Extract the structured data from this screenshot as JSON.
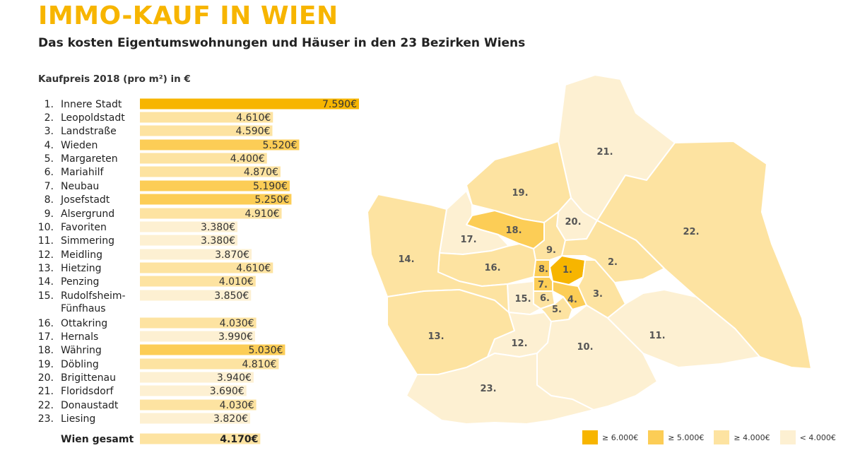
{
  "title": "IMMO-KAUF IN WIEN",
  "subtitle": "Das kosten Eigentumswohnungen und Häuser in den 23 Bezirken Wiens",
  "colors": {
    "tier1": "#f7b500",
    "tier2": "#fccd56",
    "tier3": "#fde3a1",
    "tier4": "#fdf0d2",
    "title": "#f7b500",
    "border": "#ffffff"
  },
  "chart_data": {
    "type": "bar",
    "orientation": "horizontal",
    "title": "IMMO-KAUF IN WIEN",
    "subtitle": "Das kosten Eigentumswohnungen und Häuser in den 23 Bezirken Wiens",
    "xlabel": "Kaufpreis 2018 (pro m²) in €",
    "value_suffix": "€",
    "xlim": [
      0,
      7590
    ],
    "categories": [
      {
        "rank": "1.",
        "name": "Innere Stadt",
        "value": 7590,
        "label": "7.590€",
        "tier": 1
      },
      {
        "rank": "2.",
        "name": "Leopoldstadt",
        "value": 4610,
        "label": "4.610€",
        "tier": 3
      },
      {
        "rank": "3.",
        "name": "Landstraße",
        "value": 4590,
        "label": "4.590€",
        "tier": 3
      },
      {
        "rank": "4.",
        "name": "Wieden",
        "value": 5520,
        "label": "5.520€",
        "tier": 2
      },
      {
        "rank": "5.",
        "name": "Margareten",
        "value": 4400,
        "label": "4.400€",
        "tier": 3
      },
      {
        "rank": "6.",
        "name": "Mariahilf",
        "value": 4870,
        "label": "4.870€",
        "tier": 3
      },
      {
        "rank": "7.",
        "name": "Neubau",
        "value": 5190,
        "label": "5.190€",
        "tier": 2
      },
      {
        "rank": "8.",
        "name": "Josefstadt",
        "value": 5250,
        "label": "5.250€",
        "tier": 2
      },
      {
        "rank": "9.",
        "name": "Alsergrund",
        "value": 4910,
        "label": "4.910€",
        "tier": 3
      },
      {
        "rank": "10.",
        "name": "Favoriten",
        "value": 3380,
        "label": "3.380€",
        "tier": 4
      },
      {
        "rank": "11.",
        "name": "Simmering",
        "value": 3380,
        "label": "3.380€",
        "tier": 4
      },
      {
        "rank": "12.",
        "name": "Meidling",
        "value": 3870,
        "label": "3.870€",
        "tier": 4
      },
      {
        "rank": "13.",
        "name": "Hietzing",
        "value": 4610,
        "label": "4.610€",
        "tier": 3
      },
      {
        "rank": "14.",
        "name": "Penzing",
        "value": 4010,
        "label": "4.010€",
        "tier": 3
      },
      {
        "rank": "15.",
        "name": "Rudolfsheim-Fünfhaus",
        "name_lines": [
          "Rudolfsheim-",
          "Fünfhaus"
        ],
        "value": 3850,
        "label": "3.850€",
        "tier": 4
      },
      {
        "rank": "16.",
        "name": "Ottakring",
        "value": 4030,
        "label": "4.030€",
        "tier": 3
      },
      {
        "rank": "17.",
        "name": "Hernals",
        "value": 3990,
        "label": "3.990€",
        "tier": 4
      },
      {
        "rank": "18.",
        "name": "Währing",
        "value": 5030,
        "label": "5.030€",
        "tier": 2
      },
      {
        "rank": "19.",
        "name": "Döbling",
        "value": 4810,
        "label": "4.810€",
        "tier": 3
      },
      {
        "rank": "20.",
        "name": "Brigittenau",
        "value": 3940,
        "label": "3.940€",
        "tier": 4
      },
      {
        "rank": "21.",
        "name": "Floridsdorf",
        "value": 3690,
        "label": "3.690€",
        "tier": 4
      },
      {
        "rank": "22.",
        "name": "Donaustadt",
        "value": 4030,
        "label": "4.030€",
        "tier": 3
      },
      {
        "rank": "23.",
        "name": "Liesing",
        "value": 3820,
        "label": "3.820€",
        "tier": 4
      }
    ],
    "total": {
      "name": "Wien gesamt",
      "value": 4170,
      "label": "4.170€",
      "tier": 3
    }
  },
  "map": {
    "districts": [
      {
        "id": "1.",
        "tier": 1
      },
      {
        "id": "2.",
        "tier": 3
      },
      {
        "id": "3.",
        "tier": 3
      },
      {
        "id": "4.",
        "tier": 2
      },
      {
        "id": "5.",
        "tier": 3
      },
      {
        "id": "6.",
        "tier": 3
      },
      {
        "id": "7.",
        "tier": 2
      },
      {
        "id": "8.",
        "tier": 2
      },
      {
        "id": "9.",
        "tier": 3
      },
      {
        "id": "10.",
        "tier": 4
      },
      {
        "id": "11.",
        "tier": 4
      },
      {
        "id": "12.",
        "tier": 4
      },
      {
        "id": "13.",
        "tier": 3
      },
      {
        "id": "14.",
        "tier": 3
      },
      {
        "id": "15.",
        "tier": 4
      },
      {
        "id": "16.",
        "tier": 3
      },
      {
        "id": "17.",
        "tier": 4
      },
      {
        "id": "18.",
        "tier": 2
      },
      {
        "id": "19.",
        "tier": 3
      },
      {
        "id": "20.",
        "tier": 4
      },
      {
        "id": "21.",
        "tier": 4
      },
      {
        "id": "22.",
        "tier": 3
      },
      {
        "id": "23.",
        "tier": 4
      }
    ]
  },
  "legend": [
    {
      "label": "≥ 6.000€",
      "tier": 1
    },
    {
      "label": "≥ 5.000€",
      "tier": 2
    },
    {
      "label": "≥ 4.000€",
      "tier": 3
    },
    {
      "label": "< 4.000€",
      "tier": 4
    }
  ]
}
